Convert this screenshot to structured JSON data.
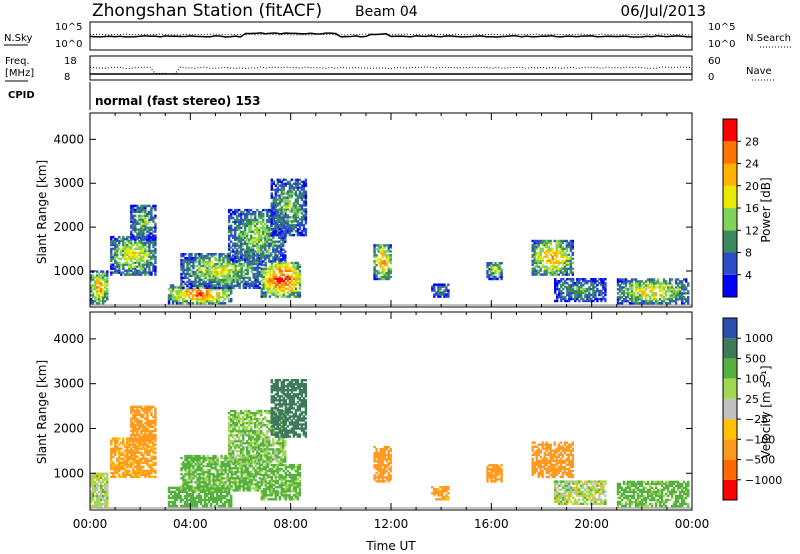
{
  "header": {
    "station": "Zhongshan Station (fitACF)",
    "beam": "Beam 04",
    "date": "06/Jul/2013"
  },
  "strips": {
    "nsky_label": "N.Sky",
    "nsky_ticks": [
      "10^5",
      "10^0"
    ],
    "nsearch_label": "N.Search",
    "nsearch_ticks": [
      "10^5",
      "10^0"
    ],
    "freq_label_1": "Freq.",
    "freq_label_2": "[MHz]",
    "freq_ticks": [
      "18",
      "8"
    ],
    "nave_label": "Nave",
    "nave_ticks": [
      "60",
      "0"
    ],
    "cpid_label": "CPID",
    "cpid_text": "normal (fast stereo) 153"
  },
  "chart_data": [
    {
      "type": "heatmap",
      "name": "power",
      "ylabel": "Slant Range [km]",
      "yticks": [
        "4000",
        "3000",
        "2000",
        "1000"
      ],
      "ylim": [
        180,
        4600
      ],
      "xlim_hours": [
        0,
        24
      ],
      "colorbar": {
        "label": "Power [dB]",
        "ticks": [
          "28",
          "24",
          "20",
          "16",
          "12",
          "8",
          "4"
        ],
        "colors": [
          "#0000ff",
          "#2d4ec8",
          "#3b8a5e",
          "#7fd35a",
          "#e8e800",
          "#ffb300",
          "#ff7300",
          "#ff0000"
        ]
      },
      "echo_regions": [
        {
          "t": [
            0.0,
            0.7
          ],
          "r": [
            250,
            1000
          ],
          "level": 0.7
        },
        {
          "t": [
            0.8,
            2.6
          ],
          "r": [
            900,
            1800
          ],
          "level": 0.55
        },
        {
          "t": [
            1.6,
            2.6
          ],
          "r": [
            1700,
            2500
          ],
          "level": 0.4
        },
        {
          "t": [
            3.1,
            5.6
          ],
          "r": [
            250,
            700
          ],
          "level": 0.8
        },
        {
          "t": [
            3.6,
            6.8
          ],
          "r": [
            600,
            1400
          ],
          "level": 0.5
        },
        {
          "t": [
            5.5,
            7.8
          ],
          "r": [
            1200,
            2400
          ],
          "level": 0.45
        },
        {
          "t": [
            6.8,
            8.4
          ],
          "r": [
            400,
            1200
          ],
          "level": 0.9
        },
        {
          "t": [
            7.2,
            8.6
          ],
          "r": [
            1800,
            3100
          ],
          "level": 0.4
        },
        {
          "t": [
            11.3,
            12.0
          ],
          "r": [
            800,
            1600
          ],
          "level": 0.7
        },
        {
          "t": [
            13.6,
            14.3
          ],
          "r": [
            400,
            700
          ],
          "level": 0.3
        },
        {
          "t": [
            15.8,
            16.4
          ],
          "r": [
            800,
            1200
          ],
          "level": 0.5
        },
        {
          "t": [
            17.6,
            19.2
          ],
          "r": [
            900,
            1700
          ],
          "level": 0.7
        },
        {
          "t": [
            18.5,
            20.5
          ],
          "r": [
            300,
            800
          ],
          "level": 0.35
        },
        {
          "t": [
            21.0,
            23.8
          ],
          "r": [
            250,
            800
          ],
          "level": 0.6
        }
      ]
    },
    {
      "type": "heatmap",
      "name": "velocity",
      "ylabel": "Slant Range [km]",
      "yticks": [
        "4000",
        "3000",
        "2000",
        "1000"
      ],
      "ylim": [
        180,
        4600
      ],
      "xlim_hours": [
        0,
        24
      ],
      "xticks": [
        "00:00",
        "04:00",
        "08:00",
        "12:00",
        "16:00",
        "20:00",
        "00:00"
      ],
      "xlabel": "Time UT",
      "colorbar": {
        "label": "Velocity [m s⁻¹]",
        "ticks": [
          "1000",
          "500",
          "100",
          "25",
          "−25",
          "−100",
          "−500",
          "−1000"
        ],
        "colors": [
          "#ff0000",
          "#ff6a00",
          "#ff9a20",
          "#ffc000",
          "#c0c0c0",
          "#a0d850",
          "#56b040",
          "#3d7a5a",
          "#2a4fb0"
        ]
      },
      "echo_regions": [
        {
          "t": [
            0.0,
            0.7
          ],
          "r": [
            250,
            1000
          ],
          "vel": 40
        },
        {
          "t": [
            0.8,
            2.6
          ],
          "r": [
            900,
            1800
          ],
          "vel": -150
        },
        {
          "t": [
            1.6,
            2.6
          ],
          "r": [
            1700,
            2500
          ],
          "vel": -200
        },
        {
          "t": [
            3.1,
            5.6
          ],
          "r": [
            250,
            700
          ],
          "vel": 300
        },
        {
          "t": [
            3.6,
            6.8
          ],
          "r": [
            600,
            1400
          ],
          "vel": 150
        },
        {
          "t": [
            5.5,
            7.8
          ],
          "r": [
            1200,
            2400
          ],
          "vel": 100
        },
        {
          "t": [
            6.8,
            8.4
          ],
          "r": [
            400,
            1200
          ],
          "vel": 150
        },
        {
          "t": [
            7.2,
            8.6
          ],
          "r": [
            1800,
            3100
          ],
          "vel": 600
        },
        {
          "t": [
            11.3,
            12.0
          ],
          "r": [
            800,
            1600
          ],
          "vel": -200
        },
        {
          "t": [
            13.6,
            14.3
          ],
          "r": [
            400,
            700
          ],
          "vel": -150
        },
        {
          "t": [
            15.8,
            16.4
          ],
          "r": [
            800,
            1200
          ],
          "vel": -200
        },
        {
          "t": [
            17.6,
            19.2
          ],
          "r": [
            900,
            1700
          ],
          "vel": -300
        },
        {
          "t": [
            18.5,
            20.5
          ],
          "r": [
            300,
            800
          ],
          "vel": 40
        },
        {
          "t": [
            21.0,
            23.8
          ],
          "r": [
            250,
            800
          ],
          "vel": 150
        }
      ]
    }
  ]
}
